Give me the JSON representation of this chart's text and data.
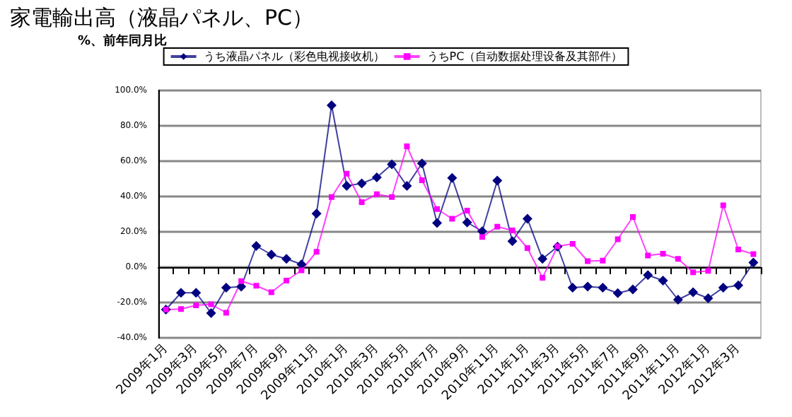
{
  "chart_data": {
    "type": "line",
    "title": "家電輸出高（液晶パネル、PC）",
    "subtitle": "%、前年同月比",
    "categories": [
      "2009年1月",
      null,
      "2009年3月",
      null,
      "2009年5月",
      null,
      "2009年7月",
      null,
      "2009年9月",
      null,
      "2009年11月",
      null,
      "2010年1月",
      null,
      "2010年3月",
      null,
      "2010年5月",
      null,
      "2010年7月",
      null,
      "2010年9月",
      null,
      "2010年11月",
      null,
      "2011年1月",
      null,
      "2011年3月",
      null,
      "2011年5月",
      null,
      "2011年7月",
      null,
      "2011年9月",
      null,
      "2011年11月",
      null,
      "2012年1月",
      null,
      "2012年3月",
      null
    ],
    "series": [
      {
        "name": "うち液晶パネル（彩色电视接收机）",
        "color": "#000080",
        "marker": "diamond",
        "values": [
          -24,
          -14.5,
          -14.5,
          -26,
          -11.6,
          -11,
          12,
          7.1,
          4.7,
          1.6,
          30.3,
          91.6,
          46,
          47.4,
          50.8,
          58.2,
          46,
          58.7,
          25,
          50.5,
          25.3,
          20.3,
          49,
          14.7,
          27.4,
          4.7,
          11.6,
          -11.6,
          -11,
          -11.6,
          -14.7,
          -12.6,
          -4.5,
          -7.6,
          -18.4,
          -14.2,
          -17.6,
          -11.6,
          -10.3,
          2.6
        ]
      },
      {
        "name": "うちPC（自动数据处理设备及其部件）",
        "color": "#ff00ff",
        "marker": "square",
        "values": [
          -24,
          -23.7,
          -21.6,
          -21,
          -25.8,
          -7.9,
          -10.5,
          -14.2,
          -7.6,
          -1.8,
          8.7,
          39.7,
          52.9,
          36.8,
          41.3,
          39.7,
          68.4,
          49.2,
          32.9,
          27.4,
          32,
          17.1,
          22.9,
          20.8,
          10.8,
          -6,
          11.8,
          13.2,
          3.4,
          3.7,
          15.8,
          28.4,
          6.6,
          7.6,
          4.7,
          -2.9,
          -2.1,
          35,
          10,
          7.4
        ]
      }
    ],
    "ylim": [
      -40,
      100
    ],
    "yticks": [
      {
        "value": -40,
        "label": "-40.0%"
      },
      {
        "value": -20,
        "label": "-20.0%"
      },
      {
        "value": 0,
        "label": "0.0%"
      },
      {
        "value": 20,
        "label": "20.0%"
      },
      {
        "value": 40,
        "label": "40.0%"
      },
      {
        "value": 60,
        "label": "60.0%"
      },
      {
        "value": 80,
        "label": "80.0%"
      },
      {
        "value": 100,
        "label": "100.0%"
      }
    ],
    "grid": "y",
    "legend": "top",
    "line_style": "solid"
  }
}
